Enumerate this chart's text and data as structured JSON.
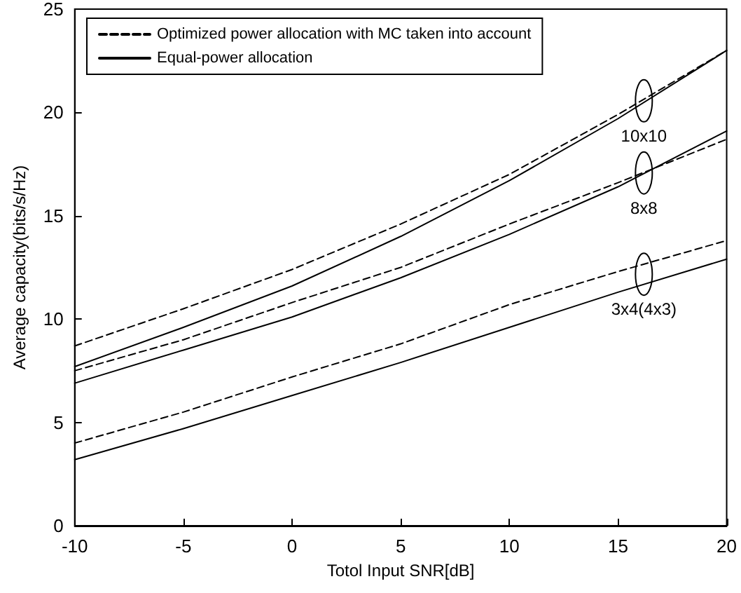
{
  "chart_data": {
    "type": "line",
    "xlabel": "Totol Input SNR[dB]",
    "ylabel": "Average capacity(bits/s/Hz)",
    "x": [
      -10,
      -5,
      0,
      5,
      10,
      15,
      20
    ],
    "xlim": [
      -10,
      20
    ],
    "xticks": [
      -10,
      -5,
      0,
      5,
      10,
      15,
      20
    ],
    "ylim": [
      0,
      25
    ],
    "yticks": [
      0,
      5,
      10,
      15,
      20,
      25
    ],
    "grid": false,
    "legend": "top left",
    "marker": "none",
    "series": [
      {
        "name": "Optimized power allocation with MC taken into account",
        "color": "#000000",
        "line_style": "dashed",
        "values": [
          8.7,
          10.5,
          12.4,
          14.6,
          17.0,
          19.9,
          23.0
        ]
      },
      {
        "name": "Equal-power allocation",
        "color": "#000000",
        "line_style": "solid",
        "values": [
          7.7,
          9.6,
          11.6,
          14.0,
          16.7,
          19.7,
          23.0
        ]
      },
      {
        "color": "#000000",
        "line_style": "dashed",
        "values": [
          7.5,
          9.0,
          10.8,
          12.5,
          14.6,
          16.6,
          18.7
        ]
      },
      {
        "color": "#000000",
        "line_style": "solid",
        "values": [
          6.9,
          8.5,
          10.1,
          12.0,
          14.1,
          16.4,
          19.1
        ]
      },
      {
        "color": "#000000",
        "line_style": "dashed",
        "values": [
          4.0,
          5.5,
          7.2,
          8.8,
          10.7,
          12.3,
          13.8
        ]
      },
      {
        "color": "#000000",
        "line_style": "solid",
        "values": [
          3.2,
          4.7,
          6.3,
          7.9,
          9.6,
          11.3,
          12.9
        ]
      }
    ],
    "annotations": [
      "10x10",
      "8x8",
      "3x4(4x3)"
    ]
  }
}
